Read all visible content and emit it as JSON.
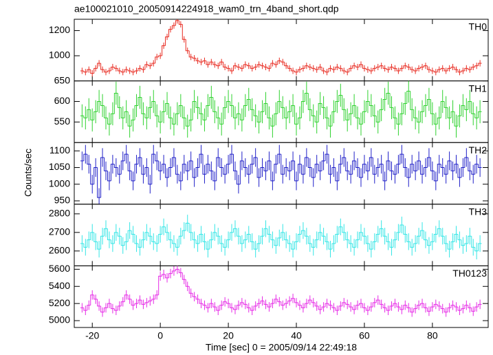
{
  "chart_data": {
    "type": "stacked-lightcurve",
    "title": "ae100021010_20050914224918_wam0_trn_4band_short.qdp",
    "x_label": "Time [sec] 0 = 2005/09/14 22:49:18",
    "y_label": "Counts/sec",
    "xlim": [
      -25.3,
      96.4
    ],
    "xticks": [
      -20,
      0,
      20,
      40,
      60,
      80
    ],
    "x": [
      -23,
      -22,
      -21,
      -20,
      -19,
      -18,
      -17,
      -16,
      -15,
      -14,
      -13,
      -12,
      -11,
      -10,
      -9,
      -8,
      -7,
      -6,
      -5,
      -4,
      -3,
      -2,
      -1,
      0,
      1,
      2,
      3,
      4,
      5,
      6,
      7,
      8,
      9,
      10,
      11,
      12,
      13,
      14,
      15,
      16,
      17,
      18,
      19,
      20,
      21,
      22,
      23,
      24,
      25,
      26,
      27,
      28,
      29,
      30,
      31,
      32,
      33,
      34,
      35,
      36,
      37,
      38,
      39,
      40,
      41,
      42,
      43,
      44,
      45,
      46,
      47,
      48,
      49,
      50,
      51,
      52,
      53,
      54,
      55,
      56,
      57,
      58,
      59,
      60,
      61,
      62,
      63,
      64,
      65,
      66,
      67,
      68,
      69,
      70,
      71,
      72,
      73,
      74,
      75,
      76,
      77,
      78,
      79,
      80,
      81,
      82,
      83,
      84,
      85,
      86,
      87,
      88,
      89,
      90,
      91,
      92,
      93,
      94
    ],
    "series": [
      {
        "name": "TH0",
        "color": "#e8281e",
        "ylim": [
          800,
          1290
        ],
        "yticks": [
          1000,
          1200
        ],
        "error": 25,
        "values": [
          880,
          870,
          890,
          860,
          900,
          940,
          890,
          870,
          880,
          910,
          900,
          880,
          870,
          890,
          880,
          870,
          880,
          900,
          890,
          930,
          920,
          940,
          990,
          1000,
          1080,
          1150,
          1210,
          1240,
          1280,
          1250,
          1130,
          1040,
          990,
          980,
          960,
          950,
          960,
          930,
          950,
          930,
          920,
          950,
          910,
          900,
          880,
          920,
          910,
          900,
          930,
          920,
          900,
          910,
          930,
          920,
          910,
          900,
          940,
          930,
          960,
          950,
          920,
          900,
          880,
          870,
          890,
          900,
          920,
          910,
          900,
          890,
          910,
          880,
          870,
          900,
          890,
          910,
          900,
          880,
          870,
          900,
          920,
          910,
          930,
          900,
          890,
          880,
          900,
          910,
          920,
          900,
          890,
          910,
          900,
          880,
          900,
          920,
          910,
          890,
          880,
          900,
          910,
          920,
          890,
          880,
          870,
          890,
          900,
          880,
          900,
          910,
          890,
          870,
          880,
          900,
          890,
          910,
          920,
          940
        ]
      },
      {
        "name": "TH1",
        "color": "#2ed22e",
        "ylim": [
          500,
          650
        ],
        "yticks": [
          550,
          600,
          650
        ],
        "error": 28,
        "values": [
          565,
          560,
          580,
          555,
          575,
          600,
          590,
          560,
          545,
          570,
          620,
          585,
          560,
          575,
          540,
          555,
          590,
          610,
          570,
          560,
          585,
          600,
          565,
          550,
          575,
          595,
          560,
          545,
          570,
          590,
          560,
          540,
          555,
          600,
          585,
          570,
          555,
          590,
          610,
          575,
          560,
          545,
          585,
          600,
          590,
          560,
          570,
          555,
          590,
          605,
          580,
          565,
          550,
          575,
          595,
          560,
          540,
          570,
          600,
          585,
          560,
          575,
          590,
          545,
          560,
          600,
          620,
          580,
          565,
          550,
          595,
          585,
          560,
          540,
          575,
          600,
          615,
          580,
          555,
          570,
          590,
          560,
          545,
          575,
          600,
          590,
          565,
          550,
          580,
          605,
          620,
          585,
          560,
          545,
          570,
          595,
          625,
          580,
          560,
          550,
          575,
          590,
          605,
          570,
          545,
          560,
          600,
          585,
          560,
          575,
          540,
          565,
          590,
          580,
          600,
          570,
          560,
          575
        ]
      },
      {
        "name": "TH2",
        "color": "#1e1ec8",
        "ylim": [
          940,
          1125
        ],
        "yticks": [
          950,
          1000,
          1050,
          1100
        ],
        "error": 28,
        "values": [
          1070,
          1090,
          1060,
          1000,
          1050,
          960,
          1080,
          1040,
          1010,
          1060,
          1050,
          1030,
          1070,
          1090,
          1040,
          1010,
          1060,
          1080,
          1030,
          1050,
          1000,
          1090,
          1070,
          1040,
          1060,
          1020,
          1050,
          1080,
          1030,
          1010,
          1060,
          1040,
          1070,
          1020,
          1050,
          1090,
          1030,
          1060,
          1040,
          1010,
          1080,
          1050,
          1030,
          1060,
          1090,
          1040,
          1000,
          1070,
          1050,
          1030,
          1060,
          1080,
          1020,
          1050,
          1040,
          1070,
          1010,
          1060,
          1090,
          1030,
          1050,
          1040,
          1070,
          1010,
          1060,
          1030,
          1080,
          1050,
          1020,
          1060,
          1040,
          1070,
          1090,
          1030,
          1050,
          1010,
          1060,
          1080,
          1040,
          1030,
          1070,
          1050,
          1020,
          1060,
          1040,
          1080,
          1030,
          1050,
          1060,
          1010,
          1070,
          1040,
          1030,
          1060,
          1090,
          1050,
          1020,
          1060,
          1040,
          1070,
          1030,
          1050,
          1080,
          1040,
          1010,
          1060,
          1050,
          1030,
          1070,
          1040,
          1060,
          1020,
          1050,
          1080,
          1040,
          1030,
          1060,
          1050
        ]
      },
      {
        "name": "TH3",
        "color": "#32e6e6",
        "ylim": [
          2520,
          2852
        ],
        "yticks": [
          2600,
          2700,
          2800
        ],
        "error": 45,
        "values": [
          2640,
          2620,
          2660,
          2700,
          2650,
          2610,
          2680,
          2720,
          2660,
          2640,
          2700,
          2680,
          2630,
          2650,
          2710,
          2690,
          2640,
          2620,
          2660,
          2700,
          2680,
          2650,
          2640,
          2690,
          2730,
          2700,
          2660,
          2640,
          2620,
          2680,
          2710,
          2750,
          2700,
          2660,
          2640,
          2690,
          2650,
          2610,
          2660,
          2700,
          2680,
          2640,
          2620,
          2660,
          2700,
          2720,
          2680,
          2640,
          2660,
          2690,
          2650,
          2610,
          2640,
          2680,
          2720,
          2690,
          2660,
          2630,
          2670,
          2700,
          2660,
          2640,
          2610,
          2650,
          2690,
          2710,
          2680,
          2640,
          2620,
          2660,
          2700,
          2680,
          2650,
          2610,
          2640,
          2690,
          2730,
          2700,
          2660,
          2640,
          2620,
          2660,
          2700,
          2680,
          2640,
          2610,
          2650,
          2690,
          2720,
          2680,
          2650,
          2620,
          2660,
          2700,
          2740,
          2690,
          2650,
          2620,
          2640,
          2680,
          2710,
          2660,
          2630,
          2650,
          2690,
          2720,
          2680,
          2640,
          2610,
          2650,
          2690,
          2660,
          2630,
          2640,
          2680,
          2620,
          2600,
          2640
        ]
      },
      {
        "name": "TH0123",
        "color": "#e628e6",
        "ylim": [
          4920,
          5640
        ],
        "yticks": [
          5000,
          5200,
          5400,
          5600
        ],
        "error": 55,
        "values": [
          5150,
          5120,
          5180,
          5300,
          5250,
          5170,
          5100,
          5150,
          5200,
          5140,
          5120,
          5170,
          5220,
          5300,
          5250,
          5180,
          5200,
          5240,
          5190,
          5210,
          5230,
          5250,
          5300,
          5520,
          5540,
          5500,
          5550,
          5580,
          5600,
          5560,
          5480,
          5400,
          5320,
          5280,
          5250,
          5200,
          5180,
          5150,
          5200,
          5160,
          5120,
          5180,
          5220,
          5200,
          5150,
          5130,
          5180,
          5210,
          5190,
          5150,
          5120,
          5170,
          5200,
          5230,
          5190,
          5160,
          5200,
          5250,
          5220,
          5180,
          5200,
          5230,
          5260,
          5210,
          5180,
          5150,
          5200,
          5240,
          5210,
          5170,
          5130,
          5160,
          5200,
          5180,
          5150,
          5120,
          5170,
          5210,
          5190,
          5160,
          5130,
          5180,
          5200,
          5150,
          5120,
          5160,
          5210,
          5240,
          5190,
          5150,
          5120,
          5170,
          5200,
          5160,
          5130,
          5180,
          5150,
          5100,
          5140,
          5180,
          5200,
          5150,
          5110,
          5160,
          5190,
          5170,
          5140,
          5100,
          5150,
          5180,
          5160,
          5120,
          5140,
          5180,
          5150,
          5110,
          5160,
          5190
        ]
      }
    ]
  }
}
